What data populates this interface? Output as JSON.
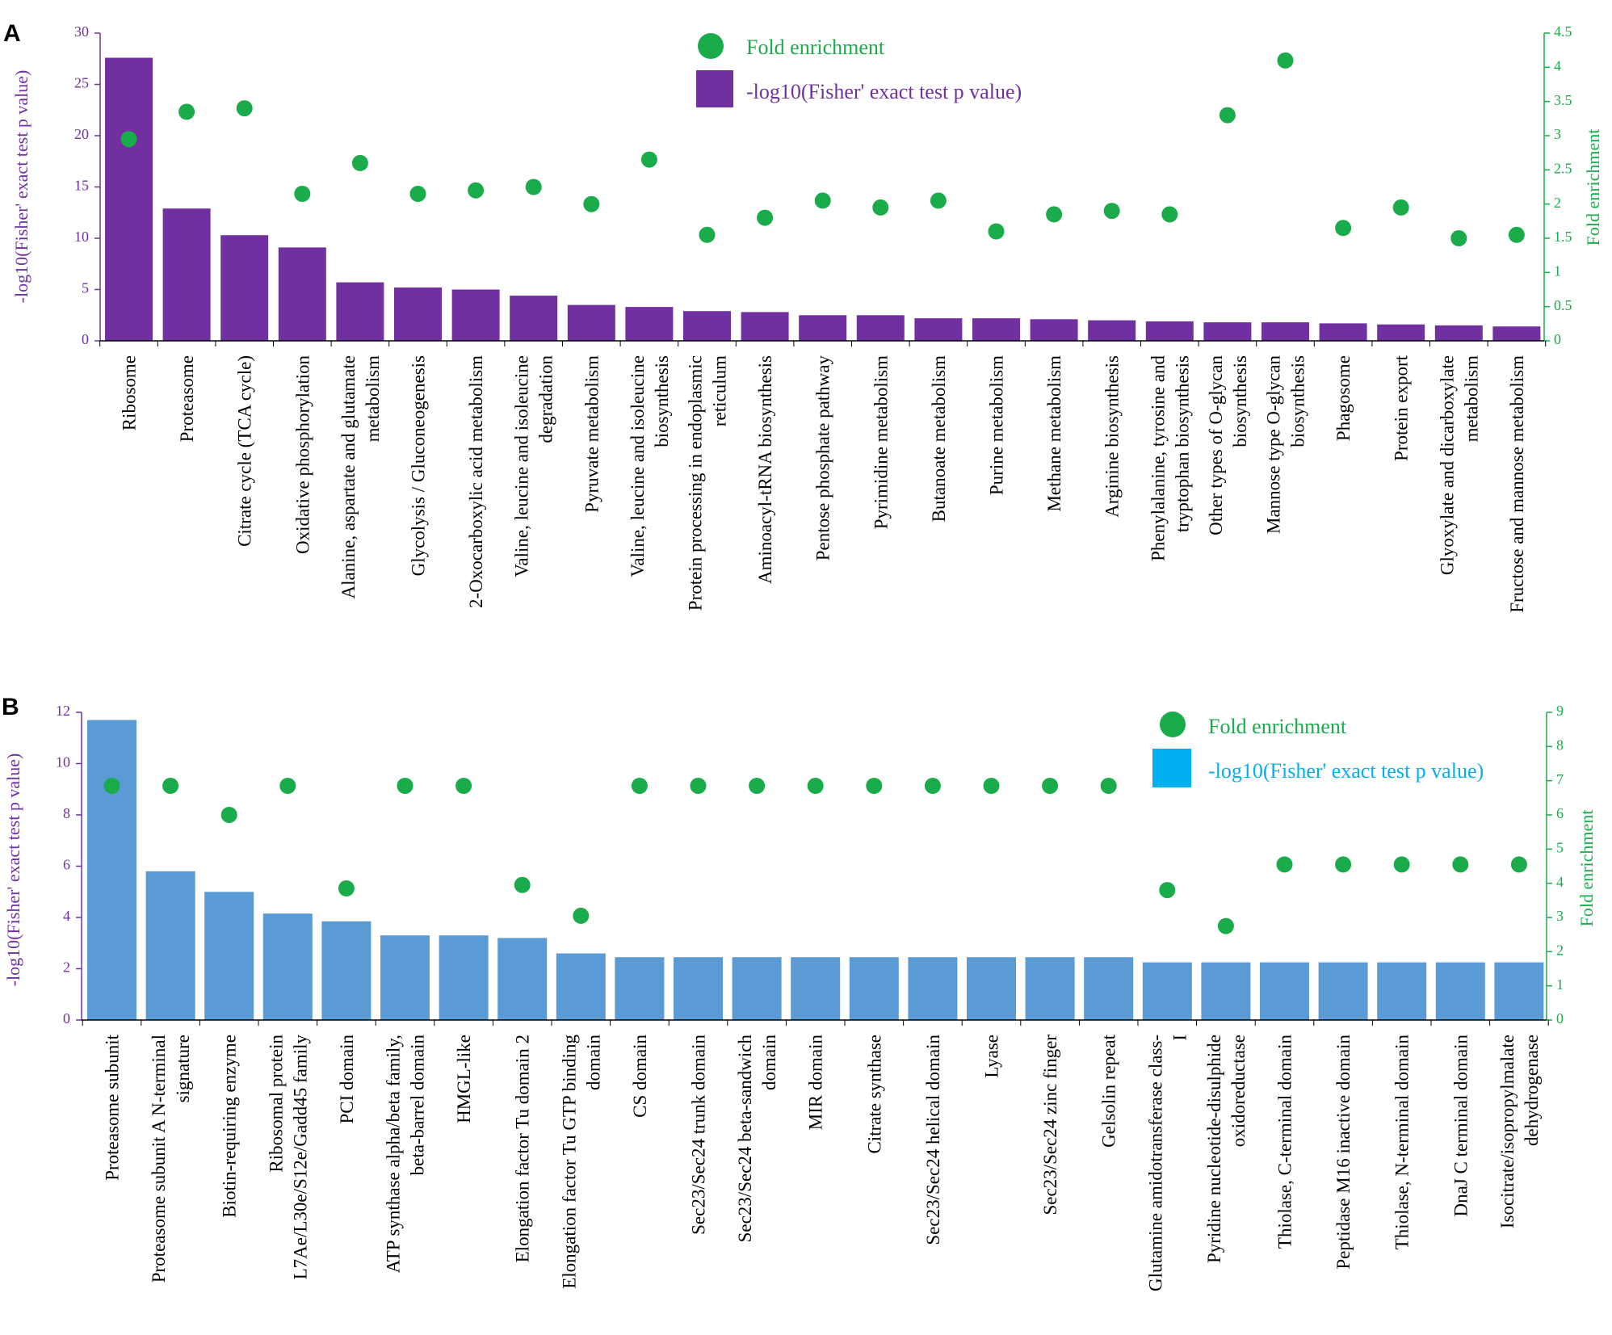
{
  "chart_data": [
    {
      "panel_label": "A",
      "type": "bar",
      "secondary_type": "scatter",
      "categories": [
        [
          "Ribosome"
        ],
        [
          "Proteasome"
        ],
        [
          "Citrate cycle (TCA cycle)"
        ],
        [
          "Oxidative phosphorylation"
        ],
        [
          "Alanine, aspartate and glutamate",
          "metabolism"
        ],
        [
          "Glycolysis / Gluconeogenesis"
        ],
        [
          "2-Oxocarboxylic acid metabolism"
        ],
        [
          "Valine, leucine and isoleucine",
          "degradation"
        ],
        [
          "Pyruvate metabolism"
        ],
        [
          "Valine, leucine and isoleucine",
          "biosynthesis"
        ],
        [
          "Protein processing in endoplasmic",
          "reticulum"
        ],
        [
          "Aminoacyl-tRNA biosynthesis"
        ],
        [
          "Pentose phosphate pathway"
        ],
        [
          "Pyrimidine metabolism"
        ],
        [
          "Butanoate metabolism"
        ],
        [
          "Purine metabolism"
        ],
        [
          "Methane metabolism"
        ],
        [
          "Arginine biosynthesis"
        ],
        [
          "Phenylalanine, tyrosine and",
          "tryptophan biosynthesis"
        ],
        [
          "Other types of O-glycan",
          "biosynthesis"
        ],
        [
          "Mannose type O-glycan",
          "biosynthesis"
        ],
        [
          "Phagosome"
        ],
        [
          "Protein export"
        ],
        [
          "Glyoxylate and dicarboxylate",
          "metabolism"
        ],
        [
          "Fructose and mannose metabolism"
        ]
      ],
      "series": [
        {
          "name": "-log10(Fisher' exact test p value)",
          "axis": "left",
          "kind": "bar",
          "values": [
            27.6,
            12.9,
            10.3,
            9.1,
            5.7,
            5.2,
            5.0,
            4.4,
            3.5,
            3.3,
            2.9,
            2.8,
            2.5,
            2.5,
            2.2,
            2.2,
            2.1,
            2.0,
            1.9,
            1.8,
            1.8,
            1.7,
            1.6,
            1.5,
            1.4
          ]
        },
        {
          "name": "Fold enrichment",
          "axis": "right",
          "kind": "scatter",
          "values": [
            2.95,
            3.35,
            3.4,
            2.15,
            2.6,
            2.15,
            2.2,
            2.25,
            2.0,
            2.65,
            1.55,
            1.8,
            2.05,
            1.95,
            2.05,
            1.6,
            1.85,
            1.9,
            1.85,
            3.3,
            4.1,
            1.65,
            1.95,
            1.5,
            1.55
          ]
        }
      ],
      "ylabel": "-log10(Fisher' exact test p value)",
      "ylabel_right": "Fold enrichment",
      "ylim": [
        0,
        30
      ],
      "yticks": [
        "0",
        "5",
        "10",
        "15",
        "20",
        "25",
        "30"
      ],
      "ylim_right": [
        0,
        4.5
      ],
      "yticks_right": [
        "0",
        "0.5",
        "1",
        "1.5",
        "2",
        "2.5",
        "3",
        "3.5",
        "4",
        "4.5"
      ],
      "legend": {
        "placement": "top-center",
        "items": [
          {
            "label": "Fold enrichment",
            "marker": "circle",
            "color": "#1aab4b"
          },
          {
            "label": "-log10(Fisher' exact test p value)",
            "marker": "square",
            "color": "#7030a0"
          }
        ]
      },
      "colors": {
        "bar": "#7030a0",
        "dot": "#1aab4b",
        "left_axis": "#7030a0",
        "right_axis": "#1aab4b",
        "legend_bar_text": "#7030a0"
      }
    },
    {
      "panel_label": "B",
      "type": "bar",
      "secondary_type": "scatter",
      "categories": [
        [
          "Proteasome subunit"
        ],
        [
          "Proteasome subunit A N-terminal",
          "signature"
        ],
        [
          "Biotin-requiring enzyme"
        ],
        [
          "Ribosomal protein",
          "L7Ae/L30e/S12e/Gadd45 family"
        ],
        [
          "PCI domain"
        ],
        [
          "ATP synthase alpha/beta family,",
          "beta-barrel domain"
        ],
        [
          "HMGL-like"
        ],
        [
          "Elongation factor Tu domain 2"
        ],
        [
          "Elongation factor Tu GTP binding",
          "domain"
        ],
        [
          "CS domain"
        ],
        [
          "Sec23/Sec24 trunk domain"
        ],
        [
          "Sec23/Sec24 beta-sandwich",
          "domain"
        ],
        [
          "MIR domain"
        ],
        [
          "Citrate synthase"
        ],
        [
          "Sec23/Sec24 helical domain"
        ],
        [
          "Lyase"
        ],
        [
          "Sec23/Sec24 zinc finger"
        ],
        [
          "Gelsolin repeat"
        ],
        [
          "Glutamine amidotransferase class-",
          "I"
        ],
        [
          "Pyridine nucleotide-disulphide",
          "oxidoreductase"
        ],
        [
          "Thiolase, C-terminal domain"
        ],
        [
          "Peptidase M16 inactive domain"
        ],
        [
          "Thiolase, N-terminal domain"
        ],
        [
          "DnaJ C terminal domain"
        ],
        [
          "Isocitrate/isopropylmalate",
          "dehydrogenase"
        ]
      ],
      "series": [
        {
          "name": "-log10(Fisher' exact test p value)",
          "axis": "left",
          "kind": "bar",
          "values": [
            11.7,
            5.8,
            5.0,
            4.15,
            3.85,
            3.3,
            3.3,
            3.2,
            2.6,
            2.45,
            2.45,
            2.45,
            2.45,
            2.45,
            2.45,
            2.45,
            2.45,
            2.45,
            2.25,
            2.25,
            2.25,
            2.25,
            2.25,
            2.25,
            2.25
          ]
        },
        {
          "name": "Fold enrichment",
          "axis": "right",
          "kind": "scatter",
          "values": [
            6.85,
            6.85,
            6.0,
            6.85,
            3.85,
            6.85,
            6.85,
            3.95,
            3.05,
            6.85,
            6.85,
            6.85,
            6.85,
            6.85,
            6.85,
            6.85,
            6.85,
            6.85,
            3.8,
            2.75,
            4.55,
            4.55,
            4.55,
            4.55,
            4.55
          ]
        }
      ],
      "ylabel": "-log10(Fisher' exact test p value)",
      "ylabel_right": "Fold enrichment",
      "ylim": [
        0,
        12
      ],
      "yticks": [
        "0",
        "2",
        "4",
        "6",
        "8",
        "10",
        "12"
      ],
      "ylim_right": [
        0,
        9
      ],
      "yticks_right": [
        "0",
        "1",
        "2",
        "3",
        "4",
        "5",
        "6",
        "7",
        "8",
        "9"
      ],
      "legend": {
        "placement": "top-right",
        "items": [
          {
            "label": "Fold enrichment",
            "marker": "circle",
            "color": "#1aab4b"
          },
          {
            "label": "-log10(Fisher' exact test p value)",
            "marker": "square",
            "color": "#00b0f0"
          }
        ]
      },
      "colors": {
        "bar": "#5b9bd5",
        "dot": "#1aab4b",
        "left_axis": "#7030a0",
        "right_axis": "#1aab4b",
        "legend_bar_text": "#00b0f0"
      }
    }
  ]
}
